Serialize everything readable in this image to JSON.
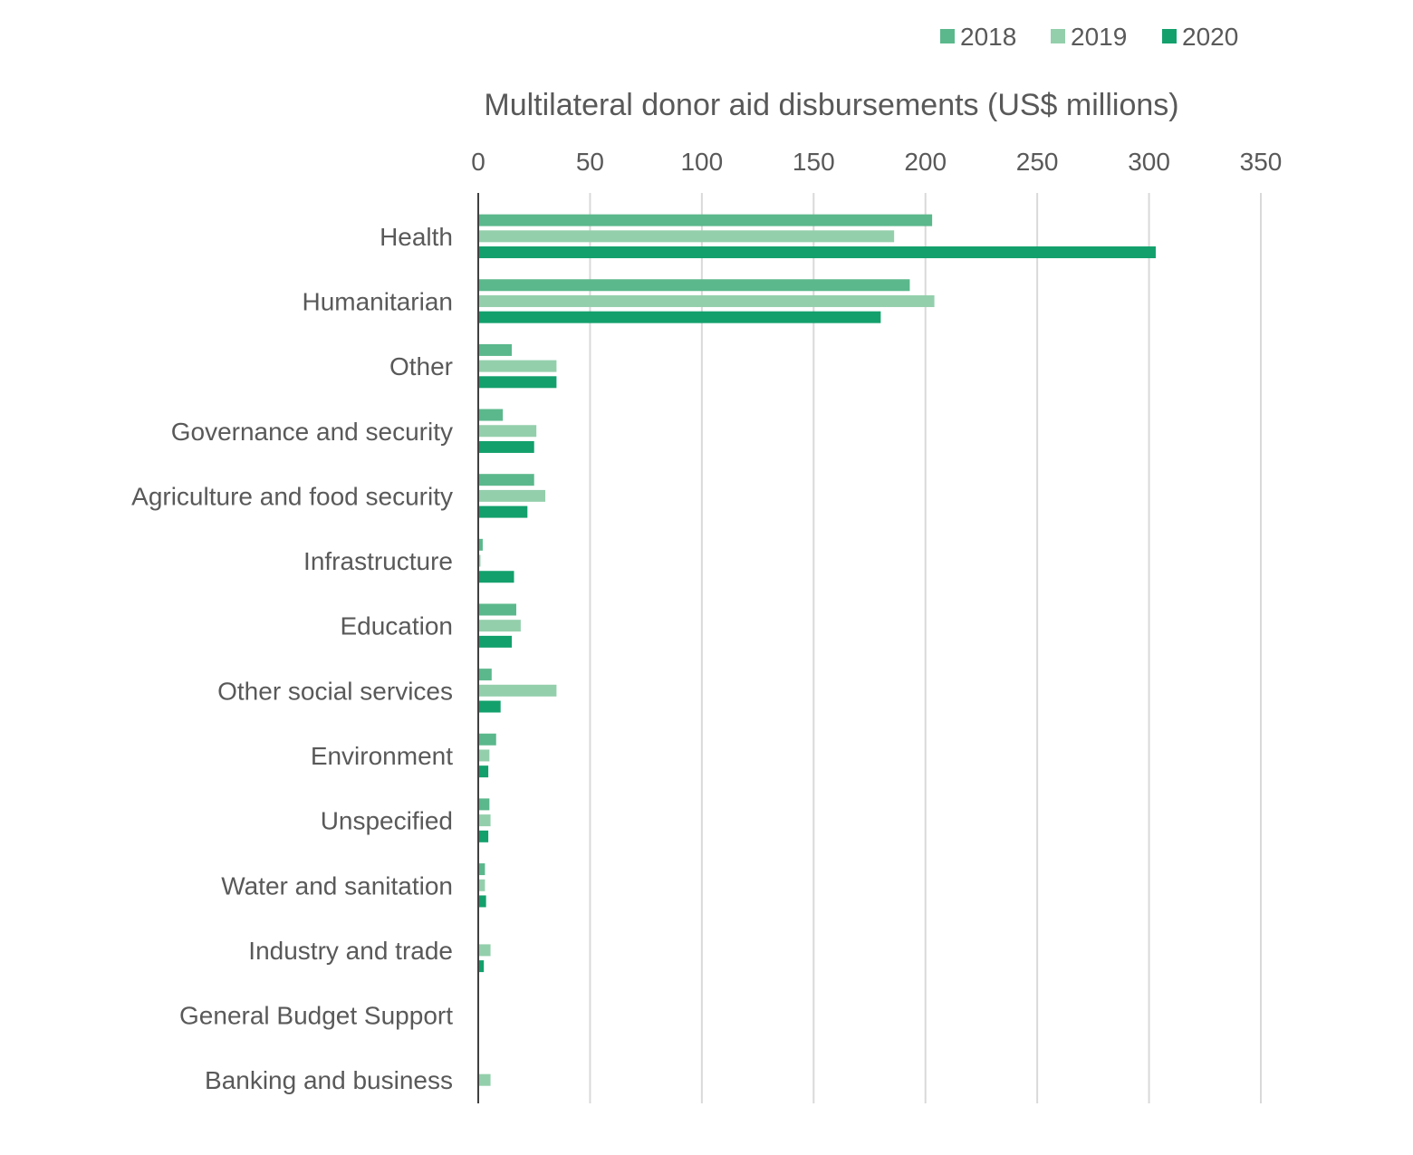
{
  "chart_data": {
    "type": "bar",
    "orientation": "horizontal",
    "title": "Multilateral donor aid disbursements (US$ millions)",
    "xlabel": "",
    "ylabel": "",
    "xlim": [
      0,
      350
    ],
    "ticks": [
      0,
      50,
      100,
      150,
      200,
      250,
      300,
      350
    ],
    "grid": true,
    "legend_position": "top-right",
    "categories": [
      "Health",
      "Humanitarian",
      "Other",
      "Governance and security",
      "Agriculture and food security",
      "Infrastructure",
      "Education",
      "Other social services",
      "Environment",
      "Unspecified",
      "Water and sanitation",
      "Industry and trade",
      "General Budget Support",
      "Banking and business"
    ],
    "series": [
      {
        "name": "2018",
        "color": "#5bb88c",
        "values": [
          203,
          193,
          15,
          11,
          25,
          2,
          17,
          6,
          8,
          5,
          3,
          0.4,
          0,
          0
        ]
      },
      {
        "name": "2019",
        "color": "#94cfac",
        "values": [
          186,
          204,
          35,
          26,
          30,
          1,
          19,
          35,
          5,
          5.5,
          3,
          5.5,
          0,
          5.5
        ]
      },
      {
        "name": "2020",
        "color": "#13a06c",
        "values": [
          303,
          180,
          35,
          25,
          22,
          16,
          15,
          10,
          4.5,
          4.5,
          3.5,
          2.5,
          0,
          0
        ]
      }
    ]
  }
}
